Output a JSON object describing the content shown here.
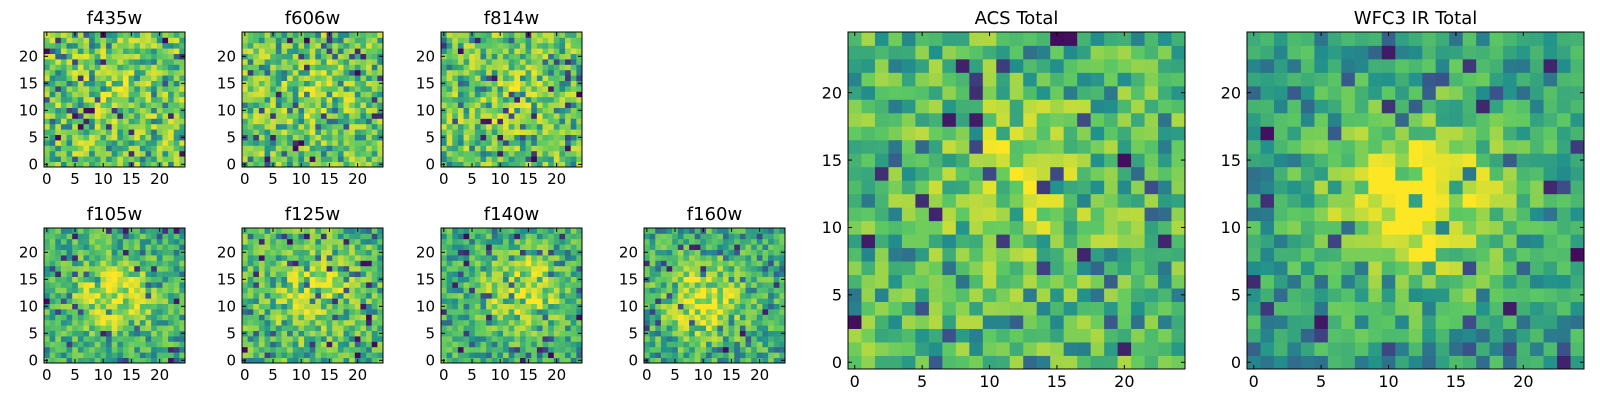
{
  "colormap": {
    "name": "viridis",
    "stops": [
      "#440154",
      "#3b528b",
      "#21918c",
      "#5ec962",
      "#fde725"
    ]
  },
  "chart_data": [
    {
      "type": "heatmap",
      "title": "f435w",
      "xlim": [
        -0.5,
        24.5
      ],
      "ylim": [
        -0.5,
        24.5
      ],
      "grid": false,
      "xticks": [
        {
          "value": 0,
          "label": "0"
        },
        {
          "value": 5,
          "label": "5"
        },
        {
          "value": 10,
          "label": "10"
        },
        {
          "value": 15,
          "label": "15"
        },
        {
          "value": 20,
          "label": "20"
        }
      ],
      "yticks": [
        {
          "value": 0,
          "label": "0"
        },
        {
          "value": 5,
          "label": "5"
        },
        {
          "value": 10,
          "label": "10"
        },
        {
          "value": 15,
          "label": "15"
        },
        {
          "value": 20,
          "label": "20"
        }
      ],
      "grid_size": [
        25,
        25
      ],
      "value_range": [
        0,
        1
      ],
      "seed": 11,
      "peak": {
        "x": 11,
        "y": 12,
        "sigma": 4,
        "strength": 0.05
      }
    },
    {
      "type": "heatmap",
      "title": "f606w",
      "xlim": [
        -0.5,
        24.5
      ],
      "ylim": [
        -0.5,
        24.5
      ],
      "grid": false,
      "xticks": [
        {
          "value": 0,
          "label": "0"
        },
        {
          "value": 5,
          "label": "5"
        },
        {
          "value": 10,
          "label": "10"
        },
        {
          "value": 15,
          "label": "15"
        },
        {
          "value": 20,
          "label": "20"
        }
      ],
      "yticks": [
        {
          "value": 0,
          "label": "0"
        },
        {
          "value": 5,
          "label": "5"
        },
        {
          "value": 10,
          "label": "10"
        },
        {
          "value": 15,
          "label": "15"
        },
        {
          "value": 20,
          "label": "20"
        }
      ],
      "grid_size": [
        25,
        25
      ],
      "value_range": [
        0,
        1
      ],
      "seed": 23,
      "peak": {
        "x": 12,
        "y": 12,
        "sigma": 4,
        "strength": 0.08
      }
    },
    {
      "type": "heatmap",
      "title": "f814w",
      "xlim": [
        -0.5,
        24.5
      ],
      "ylim": [
        -0.5,
        24.5
      ],
      "grid": false,
      "xticks": [
        {
          "value": 0,
          "label": "0"
        },
        {
          "value": 5,
          "label": "5"
        },
        {
          "value": 10,
          "label": "10"
        },
        {
          "value": 15,
          "label": "15"
        },
        {
          "value": 20,
          "label": "20"
        }
      ],
      "yticks": [
        {
          "value": 0,
          "label": "0"
        },
        {
          "value": 5,
          "label": "5"
        },
        {
          "value": 10,
          "label": "10"
        },
        {
          "value": 15,
          "label": "15"
        },
        {
          "value": 20,
          "label": "20"
        }
      ],
      "grid_size": [
        25,
        25
      ],
      "value_range": [
        0,
        1
      ],
      "seed": 37,
      "peak": {
        "x": 12,
        "y": 12,
        "sigma": 4,
        "strength": 0.08
      }
    },
    {
      "type": "heatmap",
      "title": "f105w",
      "xlim": [
        -0.5,
        24.5
      ],
      "ylim": [
        -0.5,
        24.5
      ],
      "grid": false,
      "xticks": [
        {
          "value": 0,
          "label": "0"
        },
        {
          "value": 5,
          "label": "5"
        },
        {
          "value": 10,
          "label": "10"
        },
        {
          "value": 15,
          "label": "15"
        },
        {
          "value": 20,
          "label": "20"
        }
      ],
      "yticks": [
        {
          "value": 0,
          "label": "0"
        },
        {
          "value": 5,
          "label": "5"
        },
        {
          "value": 10,
          "label": "10"
        },
        {
          "value": 15,
          "label": "15"
        },
        {
          "value": 20,
          "label": "20"
        }
      ],
      "grid_size": [
        25,
        25
      ],
      "value_range": [
        0,
        1
      ],
      "seed": 41,
      "peak": {
        "x": 12,
        "y": 12,
        "sigma": 5,
        "strength": 0.3
      }
    },
    {
      "type": "heatmap",
      "title": "f125w",
      "xlim": [
        -0.5,
        24.5
      ],
      "ylim": [
        -0.5,
        24.5
      ],
      "grid": false,
      "xticks": [
        {
          "value": 0,
          "label": "0"
        },
        {
          "value": 5,
          "label": "5"
        },
        {
          "value": 10,
          "label": "10"
        },
        {
          "value": 15,
          "label": "15"
        },
        {
          "value": 20,
          "label": "20"
        }
      ],
      "yticks": [
        {
          "value": 0,
          "label": "0"
        },
        {
          "value": 5,
          "label": "5"
        },
        {
          "value": 10,
          "label": "10"
        },
        {
          "value": 15,
          "label": "15"
        },
        {
          "value": 20,
          "label": "20"
        }
      ],
      "grid_size": [
        25,
        25
      ],
      "value_range": [
        0,
        1
      ],
      "seed": 53,
      "peak": {
        "x": 12,
        "y": 12,
        "sigma": 5,
        "strength": 0.2
      }
    },
    {
      "type": "heatmap",
      "title": "f140w",
      "xlim": [
        -0.5,
        24.5
      ],
      "ylim": [
        -0.5,
        24.5
      ],
      "grid": false,
      "xticks": [
        {
          "value": 0,
          "label": "0"
        },
        {
          "value": 5,
          "label": "5"
        },
        {
          "value": 10,
          "label": "10"
        },
        {
          "value": 15,
          "label": "15"
        },
        {
          "value": 20,
          "label": "20"
        }
      ],
      "yticks": [
        {
          "value": 0,
          "label": "0"
        },
        {
          "value": 5,
          "label": "5"
        },
        {
          "value": 10,
          "label": "10"
        },
        {
          "value": 15,
          "label": "15"
        },
        {
          "value": 20,
          "label": "20"
        }
      ],
      "grid_size": [
        25,
        25
      ],
      "value_range": [
        0,
        1
      ],
      "seed": 67,
      "peak": {
        "x": 14,
        "y": 13,
        "sigma": 5,
        "strength": 0.3
      }
    },
    {
      "type": "heatmap",
      "title": "f160w",
      "xlim": [
        -0.5,
        24.5
      ],
      "ylim": [
        -0.5,
        24.5
      ],
      "grid": false,
      "xticks": [
        {
          "value": 0,
          "label": "0"
        },
        {
          "value": 5,
          "label": "5"
        },
        {
          "value": 10,
          "label": "10"
        },
        {
          "value": 15,
          "label": "15"
        },
        {
          "value": 20,
          "label": "20"
        }
      ],
      "yticks": [
        {
          "value": 0,
          "label": "0"
        },
        {
          "value": 5,
          "label": "5"
        },
        {
          "value": 10,
          "label": "10"
        },
        {
          "value": 15,
          "label": "15"
        },
        {
          "value": 20,
          "label": "20"
        }
      ],
      "grid_size": [
        25,
        25
      ],
      "value_range": [
        0,
        1
      ],
      "seed": 79,
      "peak": {
        "x": 10,
        "y": 11,
        "sigma": 5,
        "strength": 0.3
      }
    },
    {
      "type": "heatmap",
      "title": "ACS Total",
      "xlim": [
        -0.5,
        24.5
      ],
      "ylim": [
        -0.5,
        24.5
      ],
      "grid": false,
      "xticks": [
        {
          "value": 0,
          "label": "0"
        },
        {
          "value": 5,
          "label": "5"
        },
        {
          "value": 10,
          "label": "10"
        },
        {
          "value": 15,
          "label": "15"
        },
        {
          "value": 20,
          "label": "20"
        }
      ],
      "yticks": [
        {
          "value": 0,
          "label": "0"
        },
        {
          "value": 5,
          "label": "5"
        },
        {
          "value": 10,
          "label": "10"
        },
        {
          "value": 15,
          "label": "15"
        },
        {
          "value": 20,
          "label": "20"
        }
      ],
      "grid_size": [
        25,
        25
      ],
      "value_range": [
        0,
        1
      ],
      "seed": 97,
      "peak": {
        "x": 12,
        "y": 13,
        "sigma": 4,
        "strength": 0.2
      }
    },
    {
      "type": "heatmap",
      "title": "WFC3 IR Total",
      "xlim": [
        -0.5,
        24.5
      ],
      "ylim": [
        -0.5,
        24.5
      ],
      "grid": false,
      "xticks": [
        {
          "value": 0,
          "label": "0"
        },
        {
          "value": 5,
          "label": "5"
        },
        {
          "value": 10,
          "label": "10"
        },
        {
          "value": 15,
          "label": "15"
        },
        {
          "value": 20,
          "label": "20"
        }
      ],
      "yticks": [
        {
          "value": 0,
          "label": "0"
        },
        {
          "value": 5,
          "label": "5"
        },
        {
          "value": 10,
          "label": "10"
        },
        {
          "value": 15,
          "label": "15"
        },
        {
          "value": 20,
          "label": "20"
        }
      ],
      "grid_size": [
        25,
        25
      ],
      "value_range": [
        0,
        1
      ],
      "seed": 131,
      "peak": {
        "x": 12,
        "y": 12,
        "sigma": 5,
        "strength": 0.45
      }
    }
  ]
}
